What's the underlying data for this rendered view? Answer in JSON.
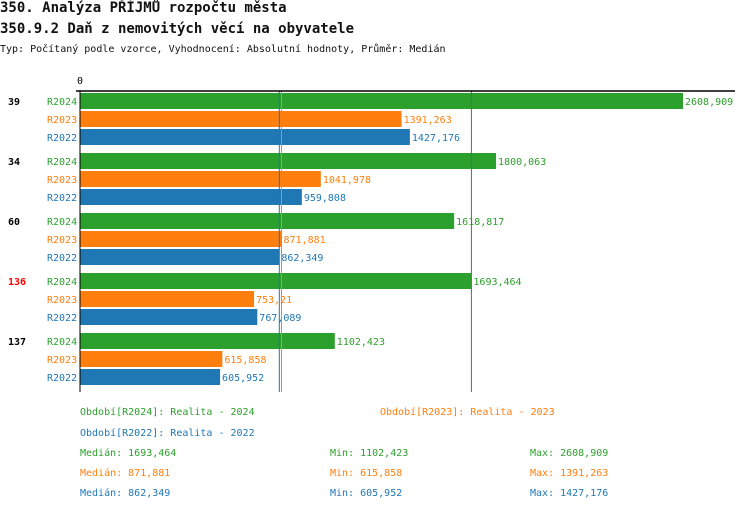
{
  "title": "350. Analýza PŘÍJMŮ rozpočtu města",
  "subtitle": "350.9.2 Daň z nemovitých věcí na obyvatele",
  "type_line": "Typ: Počítaný podle vzorce, Vyhodnocení: Absolutní hodnoty, Průměr: Medián",
  "chart_data": {
    "type": "bar",
    "orientation": "horizontal",
    "xmin": 0,
    "x_tick_label": "0",
    "groups": [
      {
        "id": "39",
        "highlight": false,
        "values": {
          "R2024": 2608.909,
          "R2023": 1391.263,
          "R2022": 1427.176
        },
        "labels": {
          "R2024": "2608,909",
          "R2023": "1391,263",
          "R2022": "1427,176"
        }
      },
      {
        "id": "34",
        "highlight": false,
        "values": {
          "R2024": 1800.063,
          "R2023": 1041.978,
          "R2022": 959.808
        },
        "labels": {
          "R2024": "1800,063",
          "R2023": "1041,978",
          "R2022": "959,808"
        }
      },
      {
        "id": "60",
        "highlight": false,
        "values": {
          "R2024": 1618.817,
          "R2023": 871.881,
          "R2022": 862.349
        },
        "labels": {
          "R2024": "1618,817",
          "R2023": "871,881",
          "R2022": "862,349"
        }
      },
      {
        "id": "136",
        "highlight": true,
        "values": {
          "R2024": 1693.464,
          "R2023": 753.21,
          "R2022": 767.089
        },
        "labels": {
          "R2024": "1693,464",
          "R2023": "753,21",
          "R2022": "767,089"
        }
      },
      {
        "id": "137",
        "highlight": false,
        "values": {
          "R2024": 1102.423,
          "R2023": 615.858,
          "R2022": 605.952
        },
        "labels": {
          "R2024": "1102,423",
          "R2023": "615,858",
          "R2022": "605,952"
        }
      }
    ],
    "series": [
      {
        "name": "R2024",
        "color": "#2ca02c",
        "legend": "Období[R2024]: Realita - 2024",
        "median": 1693.464,
        "median_label": "Medián: 1693,464",
        "min_label": "Min: 1102,423",
        "max_label": "Max: 2608,909"
      },
      {
        "name": "R2023",
        "color": "#ff7f0e",
        "legend": "Období[R2023]: Realita - 2023",
        "median": 871.881,
        "median_label": "Medián: 871,881",
        "min_label": "Min: 615,858",
        "max_label": "Max: 1391,263"
      },
      {
        "name": "R2022",
        "color": "#1f77b4",
        "legend": "Období[R2022]: Realita - 2022",
        "median": 862.349,
        "median_label": "Medián: 862,349",
        "min_label": "Min: 605,952",
        "max_label": "Max: 1427,176"
      }
    ],
    "highlight_color": "#ff0000"
  }
}
